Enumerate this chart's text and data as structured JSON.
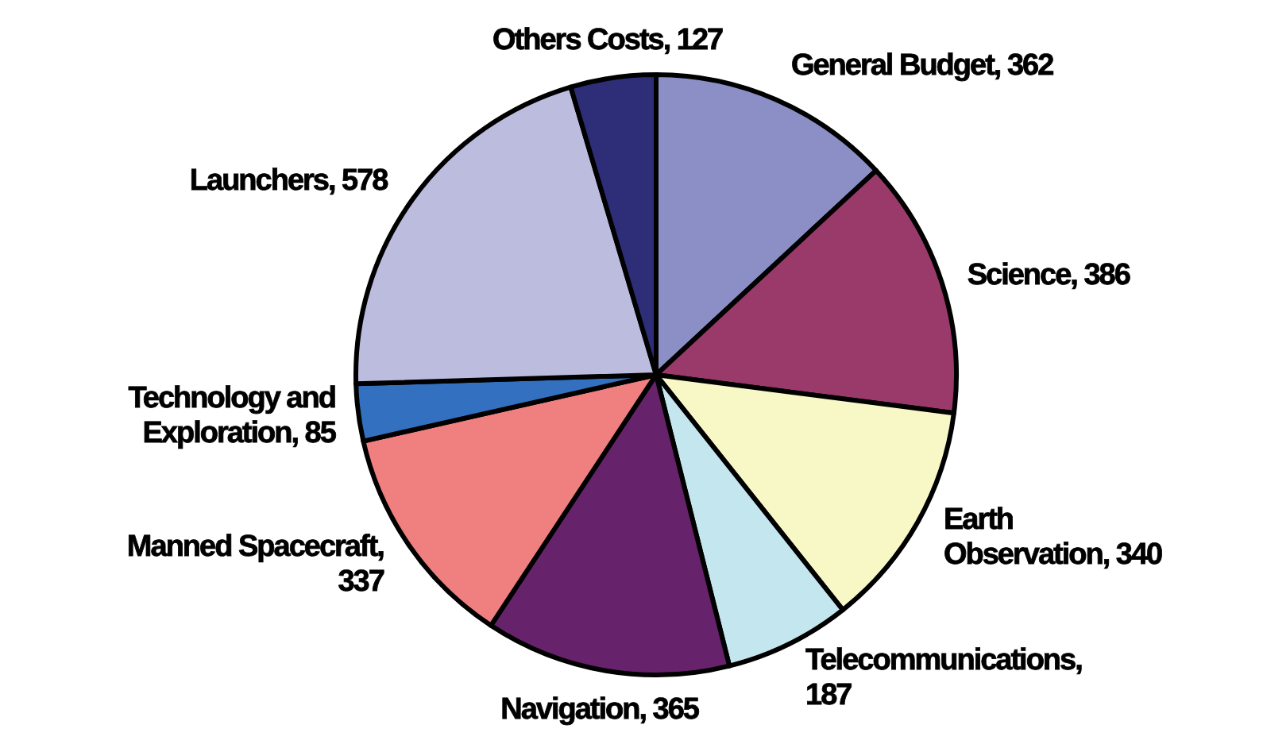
{
  "chart_data": {
    "type": "pie",
    "categories": [
      "General Budget",
      "Science",
      "Earth Observation",
      "Telecommunications",
      "Navigation",
      "Manned Spacecraft",
      "Technology and Exploration",
      "Launchers",
      "Others Costs"
    ],
    "values": [
      362,
      386,
      340,
      187,
      365,
      337,
      85,
      578,
      127
    ],
    "colors": [
      "#8b8fc6",
      "#993a6b",
      "#f8f7c6",
      "#c4e6ee",
      "#66226a",
      "#f08080",
      "#3370c0",
      "#bcbcdf",
      "#2e2e78"
    ],
    "value_labels": [
      ", 362",
      ", 386",
      ", 340",
      ", 187",
      ", 365",
      ", 337",
      ", 85",
      ", 578",
      ", 127"
    ]
  }
}
